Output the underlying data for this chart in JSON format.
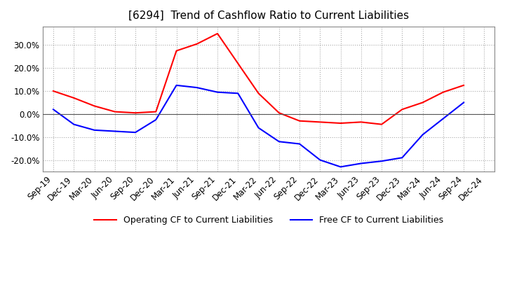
{
  "title": "[6294]  Trend of Cashflow Ratio to Current Liabilities",
  "x_labels": [
    "Sep-19",
    "Dec-19",
    "Mar-20",
    "Jun-20",
    "Sep-20",
    "Dec-20",
    "Mar-21",
    "Jun-21",
    "Sep-21",
    "Dec-21",
    "Mar-22",
    "Jun-22",
    "Sep-22",
    "Dec-22",
    "Mar-23",
    "Jun-23",
    "Sep-23",
    "Dec-23",
    "Mar-24",
    "Jun-24",
    "Sep-24",
    "Dec-24"
  ],
  "operating_cf": [
    10.0,
    7.0,
    3.5,
    1.0,
    0.5,
    1.0,
    27.5,
    30.5,
    35.0,
    22.0,
    9.0,
    0.5,
    -3.0,
    -3.5,
    -4.0,
    -3.5,
    -4.5,
    2.0,
    5.0,
    9.5,
    12.5,
    null
  ],
  "free_cf": [
    2.0,
    -4.5,
    -7.0,
    -7.5,
    -8.0,
    -2.5,
    12.5,
    11.5,
    9.5,
    9.0,
    -6.0,
    -12.0,
    -13.0,
    -20.0,
    -23.0,
    -21.5,
    -20.5,
    -19.0,
    -9.0,
    -2.0,
    5.0,
    null
  ],
  "operating_color": "#ff0000",
  "free_color": "#0000ff",
  "ylim": [
    -25,
    38
  ],
  "yticks": [
    -20,
    -10,
    0,
    10,
    20,
    30
  ],
  "background_color": "#ffffff",
  "grid_color": "#aaaaaa",
  "title_fontsize": 11,
  "tick_fontsize": 8.5
}
